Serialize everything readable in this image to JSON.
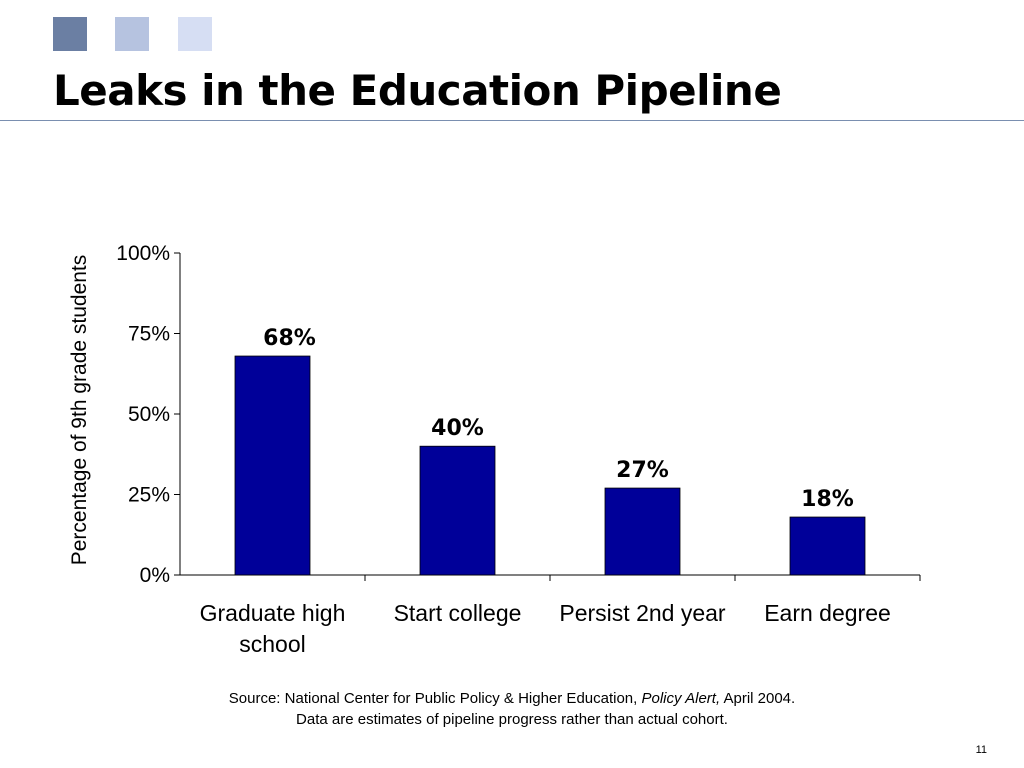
{
  "slide": {
    "title": "Leaks in the Education Pipeline",
    "page_number": "11",
    "source": {
      "prefix": "Source: National Center for Public Policy & Higher Education, ",
      "publication": "Policy Alert,",
      "suffix": " April 2004.",
      "note": "Data are estimates of pipeline progress rather than actual cohort."
    },
    "colors": {
      "bar": "#000099",
      "square_dark": "#6b7fa3",
      "square_mid": "#b6c3e0",
      "square_light": "#d6def3"
    }
  },
  "chart_data": {
    "type": "bar",
    "categories": [
      [
        "Graduate high",
        "school"
      ],
      [
        "Start college"
      ],
      [
        "Persist 2nd year"
      ],
      [
        "Earn degree"
      ]
    ],
    "values": [
      68,
      40,
      27,
      18
    ],
    "data_labels": [
      "68%",
      "40%",
      "27%",
      "18%"
    ],
    "ylabel": "Percentage of 9th grade students",
    "ylim": [
      0,
      100
    ],
    "yticks": [
      0,
      25,
      50,
      75,
      100
    ],
    "ytick_labels": [
      "0%",
      "25%",
      "50%",
      "75%",
      "100%"
    ],
    "grid": false,
    "legend": "none"
  }
}
